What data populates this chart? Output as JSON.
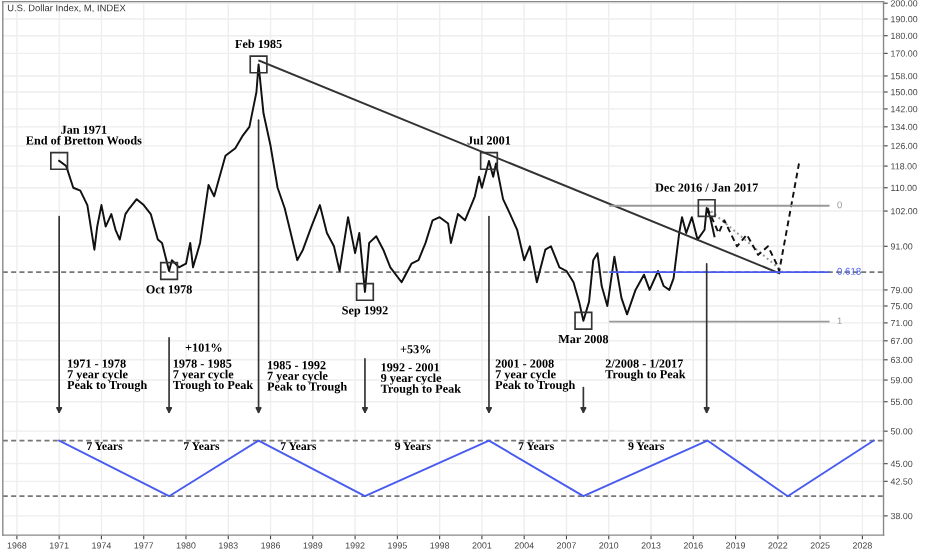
{
  "chart_data": {
    "type": "line",
    "title": "U.S. Dollar Index, M, INDEX",
    "log": "y",
    "grid": true,
    "legend": false,
    "marker": "none",
    "xlim": [
      1967,
      2029.5
    ],
    "xticks": [
      1968,
      1971,
      1974,
      1977,
      1980,
      1983,
      1986,
      1989,
      1992,
      1995,
      1998,
      2001,
      2004,
      2007,
      2010,
      2013,
      2016,
      2019,
      2022,
      2025,
      2028
    ],
    "ylim": [
      35.7,
      201
    ],
    "yticks": [
      {
        "value": 200,
        "label": "200.00"
      },
      {
        "value": 190,
        "label": "190.00"
      },
      {
        "value": 180,
        "label": "180.00"
      },
      {
        "value": 170,
        "label": "170.00"
      },
      {
        "value": 158,
        "label": "158.00"
      },
      {
        "value": 150,
        "label": "150.00"
      },
      {
        "value": 142,
        "label": "142.00"
      },
      {
        "value": 134,
        "label": "134.00"
      },
      {
        "value": 126,
        "label": "126.00"
      },
      {
        "value": 118,
        "label": "118.00"
      },
      {
        "value": 110,
        "label": "110.00"
      },
      {
        "value": 102,
        "label": "102.00"
      },
      {
        "value": 91,
        "label": "91.00"
      },
      {
        "value": 79,
        "label": "79.00"
      },
      {
        "value": 75,
        "label": "75.00"
      },
      {
        "value": 71,
        "label": "71.00"
      },
      {
        "value": 67,
        "label": "67.00"
      },
      {
        "value": 63,
        "label": "63.00"
      },
      {
        "value": 59,
        "label": "59.00"
      },
      {
        "value": 55,
        "label": "55.00"
      },
      {
        "value": 50,
        "label": "50.00"
      },
      {
        "value": 45,
        "label": "45.00"
      },
      {
        "value": 42.5,
        "label": "42.50"
      },
      {
        "value": 38,
        "label": "38.00"
      }
    ],
    "series": [
      {
        "color": "#111111",
        "x": [
          1971.0,
          1971.5,
          1972.0,
          1972.5,
          1973.0,
          1973.5,
          1973.7,
          1974.0,
          1974.3,
          1974.7,
          1975.0,
          1975.3,
          1975.7,
          1976.0,
          1976.5,
          1977.0,
          1977.5,
          1978.0,
          1978.3,
          1978.8,
          1979.0,
          1979.5,
          1980.0,
          1980.3,
          1980.5,
          1981.0,
          1981.6,
          1982.0,
          1982.8,
          1983.5,
          1984.0,
          1984.5,
          1985.0,
          1985.15,
          1985.5,
          1986.0,
          1986.5,
          1987.0,
          1987.9,
          1988.3,
          1988.9,
          1989.5,
          1990.0,
          1990.5,
          1990.9,
          1991.5,
          1992.0,
          1992.3,
          1992.7,
          1993.0,
          1993.5,
          1994.0,
          1994.5,
          1995.3,
          1996.0,
          1996.5,
          1997.0,
          1997.5,
          1998.0,
          1998.6,
          1998.8,
          1999.3,
          1999.8,
          2000.5,
          2000.8,
          2001.0,
          2001.5,
          2001.8,
          2002.0,
          2002.5,
          2003.0,
          2003.5,
          2004.0,
          2004.4,
          2004.9,
          2005.5,
          2005.9,
          2006.5,
          2007.0,
          2007.5,
          2007.9,
          2008.2,
          2008.6,
          2008.9,
          2009.2,
          2009.5,
          2009.9,
          2010.4,
          2010.9,
          2011.3,
          2011.9,
          2012.5,
          2012.9,
          2013.5,
          2013.9,
          2014.3,
          2014.6,
          2015.0,
          2015.2,
          2015.5,
          2015.9,
          2016.3,
          2016.8,
          2016.95,
          2017.2,
          2017.5
        ],
        "values": [
          120,
          118,
          110,
          109,
          104,
          90,
          97,
          104,
          97,
          101,
          96,
          93,
          101,
          103,
          106,
          104,
          101,
          93,
          92,
          84,
          87,
          85,
          86,
          92,
          85,
          92,
          111,
          107,
          122,
          125,
          130,
          134,
          150,
          164,
          140,
          126,
          110,
          103,
          87,
          90,
          97,
          104,
          95,
          91,
          84,
          100,
          89,
          95,
          78.5,
          92,
          94,
          90,
          85,
          81,
          86,
          87,
          92,
          99,
          100,
          98,
          92,
          101,
          99,
          107,
          114,
          110,
          120,
          114,
          119,
          106,
          101,
          96,
          87,
          91,
          81,
          90,
          91,
          85,
          84,
          81,
          76,
          71.5,
          76,
          87,
          89,
          80,
          75,
          88,
          77,
          73,
          79,
          83,
          79,
          84,
          80,
          79,
          82,
          95,
          100,
          95,
          100,
          93,
          96,
          103,
          100,
          94
        ]
      },
      {
        "color": "#333333",
        "x": [
          1985.2,
          2022.1
        ],
        "values": [
          166,
          83.4
        ]
      },
      {
        "color": "#999999",
        "line_style": "dotted",
        "x": [
          2017.0,
          2022.3
        ],
        "values": [
          103,
          84
        ]
      },
      {
        "color": "#111111",
        "line_style": "dashed",
        "x": [
          2017.0,
          2017.8,
          2018.2,
          2019.1,
          2019.8,
          2020.6,
          2021.3,
          2021.9,
          2022.1,
          2023.5
        ],
        "values": [
          103,
          95,
          99,
          91,
          94.5,
          88.5,
          91,
          86,
          84,
          119
        ]
      },
      {
        "name": "0",
        "color": "#999999",
        "x": [
          2010.1,
          2025.6
        ],
        "values": [
          103.8,
          103.8
        ]
      },
      {
        "name": "0.618",
        "color": "#4a5cf0",
        "x": [
          2010.1,
          2025.6
        ],
        "values": [
          83.7,
          83.7
        ]
      },
      {
        "name": "1",
        "color": "#999999",
        "x": [
          2010.1,
          2025.6
        ],
        "values": [
          71.3,
          71.3
        ]
      },
      {
        "color": "#4a5cf0",
        "x": [
          1971.0,
          1978.8,
          1985.15,
          1992.7,
          2001.5,
          2008.2,
          2017.0,
          2022.7,
          2028.8
        ],
        "values": [
          48.5,
          40.5,
          48.5,
          40.5,
          48.5,
          40.5,
          48.5,
          40.5,
          48.5
        ]
      }
    ],
    "ref_lines": [
      {
        "axis": "y",
        "value": 83.7,
        "color": "#777777",
        "line_style": "dashed"
      },
      {
        "axis": "y",
        "value": 48.5,
        "color": "#777777",
        "line_style": "dashed"
      },
      {
        "axis": "y",
        "value": 40.5,
        "color": "#777777",
        "line_style": "dashed"
      }
    ],
    "annotations": [
      {
        "text": "Jan 1971\nEnd of Bretton Woods",
        "x": 1971.0,
        "y": 120
      },
      {
        "text": "Oct 1978",
        "x": 1978.8,
        "y": 84
      },
      {
        "text": "Feb 1985",
        "x": 1985.15,
        "y": 164
      },
      {
        "text": "Sep 1992",
        "x": 1992.7,
        "y": 78.5
      },
      {
        "text": "Jul 2001",
        "x": 2001.5,
        "y": 120
      },
      {
        "text": "Mar 2008",
        "x": 2008.2,
        "y": 71.5
      },
      {
        "text": "Dec 2016 / Jan 2017",
        "x": 2016.95,
        "y": 103
      },
      "7 Years",
      "7 Years",
      "7 Years",
      "9 Years",
      "7 Years",
      "9 Years",
      "1971 - 1978\n7 year cycle\nPeak to Trough",
      "+101%",
      "1978 - 1985\n7 year cycle\nTrough to Peak",
      "1985 - 1992\n7 year cycle\nPeak to Trough",
      "+53%",
      "1992 - 2001\n9 year cycle\nTrough to Peak",
      "2001 - 2008\n7 year cycle\nPeak to Trough",
      "2/2008 - 1/2017\nTrough to Peak"
    ]
  }
}
